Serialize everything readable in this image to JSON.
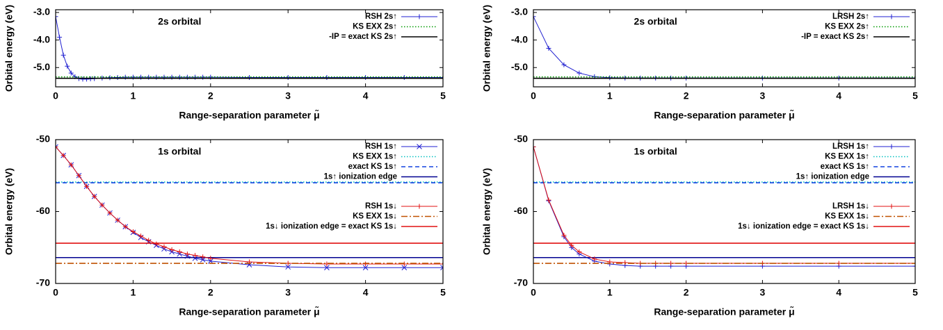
{
  "chart_data": [
    {
      "type": "line",
      "title": "2s orbital",
      "xlabel": "Range-separation parameter μ̃",
      "ylabel": "Orbital energy (eV)",
      "xlim": [
        0,
        5
      ],
      "ylim": [
        -5.7,
        -2.9
      ],
      "xticks": [
        0,
        1,
        2,
        3,
        4,
        5
      ],
      "yticks": [
        {
          "value": -5,
          "label": "-5.0"
        },
        {
          "value": -4,
          "label": "-4.0"
        },
        {
          "value": -3,
          "label": "-3.0"
        }
      ],
      "legend": "upper right",
      "series": [
        {
          "name": "RSH 2s↑",
          "color": "#1f1fd0",
          "style": "solid",
          "marker": "+",
          "x": [
            0,
            0.05,
            0.1,
            0.15,
            0.2,
            0.25,
            0.3,
            0.35,
            0.4,
            0.45,
            0.5,
            0.6,
            0.7,
            0.8,
            0.9,
            1,
            1.1,
            1.2,
            1.3,
            1.4,
            1.5,
            1.6,
            1.7,
            1.8,
            1.9,
            2,
            2.5,
            3,
            3.5,
            4,
            4.5,
            5
          ],
          "values": [
            -3.15,
            -3.9,
            -4.55,
            -4.95,
            -5.2,
            -5.33,
            -5.4,
            -5.42,
            -5.42,
            -5.41,
            -5.4,
            -5.38,
            -5.37,
            -5.36,
            -5.35,
            -5.35,
            -5.35,
            -5.35,
            -5.35,
            -5.35,
            -5.35,
            -5.35,
            -5.35,
            -5.35,
            -5.35,
            -5.35,
            -5.36,
            -5.36,
            -5.36,
            -5.36,
            -5.36,
            -5.36
          ]
        },
        {
          "name": "KS EXX 2s↑",
          "color": "#009a00",
          "style": "dotted",
          "marker": null,
          "x": [
            0,
            5
          ],
          "values": [
            -5.34,
            -5.34
          ]
        },
        {
          "name": "-IP = exact KS 2s↑",
          "color": "#000000",
          "style": "solid",
          "marker": null,
          "x": [
            0,
            5
          ],
          "values": [
            -5.39,
            -5.39
          ]
        }
      ]
    },
    {
      "type": "line",
      "title": "2s orbital",
      "xlabel": "Range-separation parameter μ̃",
      "ylabel": "Orbital energy (eV)",
      "xlim": [
        0,
        5
      ],
      "ylim": [
        -5.7,
        -2.9
      ],
      "xticks": [
        0,
        1,
        2,
        3,
        4,
        5
      ],
      "yticks": [
        {
          "value": -5,
          "label": "-5.0"
        },
        {
          "value": -4,
          "label": "-4.0"
        },
        {
          "value": -3,
          "label": "-3.0"
        }
      ],
      "legend": "upper right",
      "series": [
        {
          "name": "LRSH 2s↑",
          "color": "#1f1fd0",
          "style": "solid",
          "marker": "+",
          "x": [
            0,
            0.2,
            0.4,
            0.6,
            0.8,
            1,
            1.2,
            1.4,
            1.6,
            1.8,
            2,
            3,
            4,
            5
          ],
          "values": [
            -3.15,
            -4.3,
            -4.9,
            -5.2,
            -5.33,
            -5.37,
            -5.38,
            -5.38,
            -5.38,
            -5.38,
            -5.38,
            -5.38,
            -5.38,
            -5.38
          ]
        },
        {
          "name": "KS EXX 2s↑",
          "color": "#009a00",
          "style": "dotted",
          "marker": null,
          "x": [
            0,
            5
          ],
          "values": [
            -5.34,
            -5.34
          ]
        },
        {
          "name": "-IP = exact KS 2s↑",
          "color": "#000000",
          "style": "solid",
          "marker": null,
          "x": [
            0,
            5
          ],
          "values": [
            -5.39,
            -5.39
          ]
        }
      ]
    },
    {
      "type": "line",
      "title": "1s orbital",
      "xlabel": "Range-separation parameter μ̃",
      "ylabel": "Orbital energy (eV)",
      "xlim": [
        0,
        5
      ],
      "ylim": [
        -70,
        -50
      ],
      "xticks": [
        0,
        1,
        2,
        3,
        4,
        5
      ],
      "yticks": [
        -70,
        -60,
        -50
      ],
      "legend": "upper right",
      "series": [
        {
          "name": "RSH 1s↑",
          "color": "#1f1fd0",
          "style": "solid",
          "marker": "x",
          "x": [
            0,
            0.1,
            0.2,
            0.3,
            0.4,
            0.5,
            0.6,
            0.7,
            0.8,
            0.9,
            1,
            1.1,
            1.2,
            1.3,
            1.4,
            1.5,
            1.6,
            1.7,
            1.8,
            1.9,
            2,
            2.5,
            3,
            3.5,
            4,
            4.5,
            5
          ],
          "values": [
            -51,
            -52.2,
            -53.5,
            -55,
            -56.5,
            -57.9,
            -59.1,
            -60.2,
            -61.2,
            -62.1,
            -62.9,
            -63.6,
            -64.2,
            -64.7,
            -65.2,
            -65.6,
            -65.9,
            -66.2,
            -66.5,
            -66.7,
            -66.9,
            -67.4,
            -67.7,
            -67.8,
            -67.8,
            -67.8,
            -67.8
          ]
        },
        {
          "name": "KS EXX 1s↑",
          "color": "#00c0c0",
          "style": "dotted",
          "marker": null,
          "x": [
            0,
            5
          ],
          "values": [
            -55.9,
            -55.9
          ]
        },
        {
          "name": "exact KS 1s↑",
          "color": "#1040e0",
          "style": "dashed",
          "marker": null,
          "x": [
            0,
            5
          ],
          "values": [
            -56,
            -56
          ]
        },
        {
          "name": "1s↑ ionization edge",
          "color": "#000090",
          "style": "solid",
          "marker": null,
          "x": [
            0,
            5
          ],
          "values": [
            -66.4,
            -66.4
          ]
        },
        {
          "name": "RSH 1s↓",
          "color": "#e01010",
          "style": "solid",
          "marker": "+",
          "x": [
            0,
            0.1,
            0.2,
            0.3,
            0.4,
            0.5,
            0.6,
            0.7,
            0.8,
            0.9,
            1,
            1.1,
            1.2,
            1.3,
            1.4,
            1.5,
            1.6,
            1.7,
            1.8,
            1.9,
            2,
            2.5,
            3,
            3.5,
            4,
            4.5,
            5
          ],
          "values": [
            -51,
            -52.2,
            -53.5,
            -55,
            -56.5,
            -57.9,
            -59.1,
            -60.2,
            -61.2,
            -62.1,
            -62.8,
            -63.4,
            -64,
            -64.5,
            -64.9,
            -65.3,
            -65.6,
            -65.9,
            -66.1,
            -66.3,
            -66.5,
            -67,
            -67.2,
            -67.3,
            -67.3,
            -67.3,
            -67.3
          ]
        },
        {
          "name": "KS EXX 1s↓",
          "color": "#c05000",
          "style": "dashdot",
          "marker": null,
          "x": [
            0,
            5
          ],
          "values": [
            -67.2,
            -67.2
          ]
        },
        {
          "name": "1s↓ ionization edge = exact KS 1s↓",
          "color": "#e01010",
          "style": "solid",
          "marker": null,
          "x": [
            0,
            5
          ],
          "values": [
            -64.4,
            -64.4
          ]
        }
      ]
    },
    {
      "type": "line",
      "title": "1s orbital",
      "xlabel": "Range-separation parameter μ̃",
      "ylabel": "Orbital energy (eV)",
      "xlim": [
        0,
        5
      ],
      "ylim": [
        -70,
        -50
      ],
      "xticks": [
        0,
        1,
        2,
        3,
        4,
        5
      ],
      "yticks": [
        -70,
        -60,
        -50
      ],
      "legend": "upper right",
      "series": [
        {
          "name": "LRSH 1s↑",
          "color": "#1f1fd0",
          "style": "solid",
          "marker": "+",
          "x": [
            0,
            0.2,
            0.4,
            0.5,
            0.6,
            0.8,
            1,
            1.2,
            1.4,
            1.6,
            1.8,
            2,
            3,
            4,
            5
          ],
          "values": [
            -51,
            -58.5,
            -63.5,
            -65,
            -65.9,
            -66.9,
            -67.3,
            -67.5,
            -67.6,
            -67.6,
            -67.6,
            -67.6,
            -67.6,
            -67.6,
            -67.6
          ]
        },
        {
          "name": "KS EXX 1s↑",
          "color": "#00c0c0",
          "style": "dotted",
          "marker": null,
          "x": [
            0,
            5
          ],
          "values": [
            -55.9,
            -55.9
          ]
        },
        {
          "name": "exact KS 1s↑",
          "color": "#1040e0",
          "style": "dashed",
          "marker": null,
          "x": [
            0,
            5
          ],
          "values": [
            -56,
            -56
          ]
        },
        {
          "name": "1s↑ ionization edge",
          "color": "#000090",
          "style": "solid",
          "marker": null,
          "x": [
            0,
            5
          ],
          "values": [
            -66.4,
            -66.4
          ]
        },
        {
          "name": "LRSH 1s↓",
          "color": "#e01010",
          "style": "solid",
          "marker": "+",
          "x": [
            0,
            0.2,
            0.4,
            0.5,
            0.6,
            0.8,
            1,
            1.2,
            1.4,
            1.6,
            1.8,
            2,
            3,
            4,
            5
          ],
          "values": [
            -51,
            -58.4,
            -63.3,
            -64.7,
            -65.6,
            -66.6,
            -67,
            -67.1,
            -67.2,
            -67.2,
            -67.2,
            -67.2,
            -67.2,
            -67.2,
            -67.2
          ]
        },
        {
          "name": "KS EXX 1s↓",
          "color": "#c05000",
          "style": "dashdot",
          "marker": null,
          "x": [
            0,
            5
          ],
          "values": [
            -67.2,
            -67.2
          ]
        },
        {
          "name": "1s↓ ionization edge = exact KS 1s↓",
          "color": "#e01010",
          "style": "solid",
          "marker": null,
          "x": [
            0,
            5
          ],
          "values": [
            -64.4,
            -64.4
          ]
        }
      ]
    }
  ]
}
